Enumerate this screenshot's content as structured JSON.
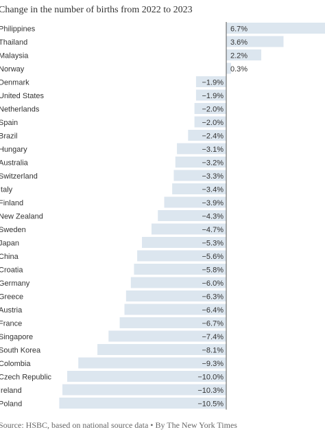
{
  "chart_data": {
    "type": "bar",
    "orientation": "horizontal",
    "title": "Change in the number of births from 2022 to 2023",
    "source": "Source: HSBC, based on national source data • By The New York Times",
    "bar_color": "#dce6ef",
    "axis_color": "#555555",
    "categories": [
      "Philippines",
      "Thailand",
      "Malaysia",
      "Norway",
      "Denmark",
      "United States",
      "Netherlands",
      "Spain",
      "Brazil",
      "Hungary",
      "Australia",
      "Switzerland",
      "Italy",
      "Finland",
      "New Zealand",
      "Sweden",
      "Japan",
      "China",
      "Croatia",
      "Germany",
      "Greece",
      "Austria",
      "France",
      "Singapore",
      "South Korea",
      "Colombia",
      "Czech Republic",
      "Ireland",
      "Poland"
    ],
    "values": [
      6.7,
      3.6,
      2.2,
      0.3,
      -1.9,
      -1.9,
      -2.0,
      -2.0,
      -2.4,
      -3.1,
      -3.2,
      -3.3,
      -3.4,
      -3.9,
      -4.3,
      -4.7,
      -5.3,
      -5.6,
      -5.8,
      -6.0,
      -6.3,
      -6.4,
      -6.7,
      -7.4,
      -8.1,
      -9.3,
      -10.0,
      -10.3,
      -10.5
    ],
    "value_labels": [
      "6.7%",
      "3.6%",
      "2.2%",
      "0.3%",
      "−1.9%",
      "−1.9%",
      "−2.0%",
      "−2.0%",
      "−2.4%",
      "−3.1%",
      "−3.2%",
      "−3.3%",
      "−3.4%",
      "−3.9%",
      "−4.3%",
      "−4.7%",
      "−5.3%",
      "−5.6%",
      "−5.8%",
      "−6.0%",
      "−6.3%",
      "−6.4%",
      "−6.7%",
      "−7.4%",
      "−8.1%",
      "−9.3%",
      "−10.0%",
      "−10.3%",
      "−10.5%"
    ],
    "unit": "%",
    "grid": false,
    "legend": "none"
  }
}
